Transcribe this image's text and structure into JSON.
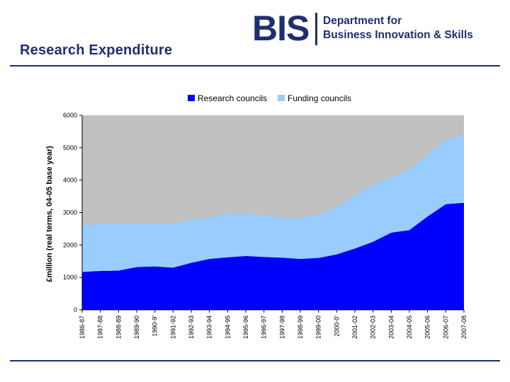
{
  "header": {
    "title": "Research Expenditure",
    "logo": {
      "mark": "BIS",
      "line1": "Department for",
      "line2": "Business Innovation & Skills"
    }
  },
  "colors": {
    "background_fill": "#c0c0c0",
    "research_councils": "#0000ff",
    "funding_councils": "#99ccff",
    "rule": "#1f2f6e"
  },
  "chart_data": {
    "type": "area",
    "stacked": true,
    "title": "",
    "xlabel": "",
    "ylabel": "£million (real terms, 04-05 base year)",
    "ylim": [
      0,
      6000
    ],
    "yticks": [
      "0",
      "1000",
      "2000",
      "3000",
      "4000",
      "5000",
      "6000"
    ],
    "legend_position": "top",
    "grid": false,
    "categories": [
      "1986-87",
      "1987-88",
      "1988-89",
      "1989-90",
      "1990-91",
      "1991-92",
      "1992-93",
      "1993-94",
      "1994-95",
      "1995-96",
      "1996-97",
      "1997-98",
      "1998-99",
      "1999-00",
      "2000-01",
      "2001-02",
      "2002-03",
      "2003-04",
      "2004-05",
      "2005-06",
      "2006-07",
      "2007-08"
    ],
    "category_labels": [
      "1986-87",
      "1987-88",
      "1988-89",
      "1989-90",
      "1990-9'",
      "1991-92",
      "1992-93",
      "1993-94",
      "1994-95",
      "1995-96",
      "1996-97",
      "1997-98",
      "1998-99",
      "1999-00",
      "2000-0'",
      "2001-02",
      "2002-03",
      "2003-04",
      "2004-05",
      "2005-06",
      "2006-07",
      "2007-08"
    ],
    "series": [
      {
        "name": "Research councils",
        "color": "#0000ff",
        "values": [
          1170,
          1200,
          1210,
          1320,
          1340,
          1300,
          1450,
          1570,
          1620,
          1660,
          1630,
          1610,
          1570,
          1600,
          1710,
          1890,
          2100,
          2380,
          2460,
          2880,
          3260,
          3300
        ]
      },
      {
        "name": "Funding councils",
        "color": "#99ccff",
        "values": [
          1430,
          1440,
          1450,
          1340,
          1320,
          1360,
          1320,
          1280,
          1350,
          1320,
          1280,
          1230,
          1270,
          1340,
          1450,
          1650,
          1750,
          1710,
          1870,
          1910,
          1990,
          2090
        ]
      }
    ]
  }
}
